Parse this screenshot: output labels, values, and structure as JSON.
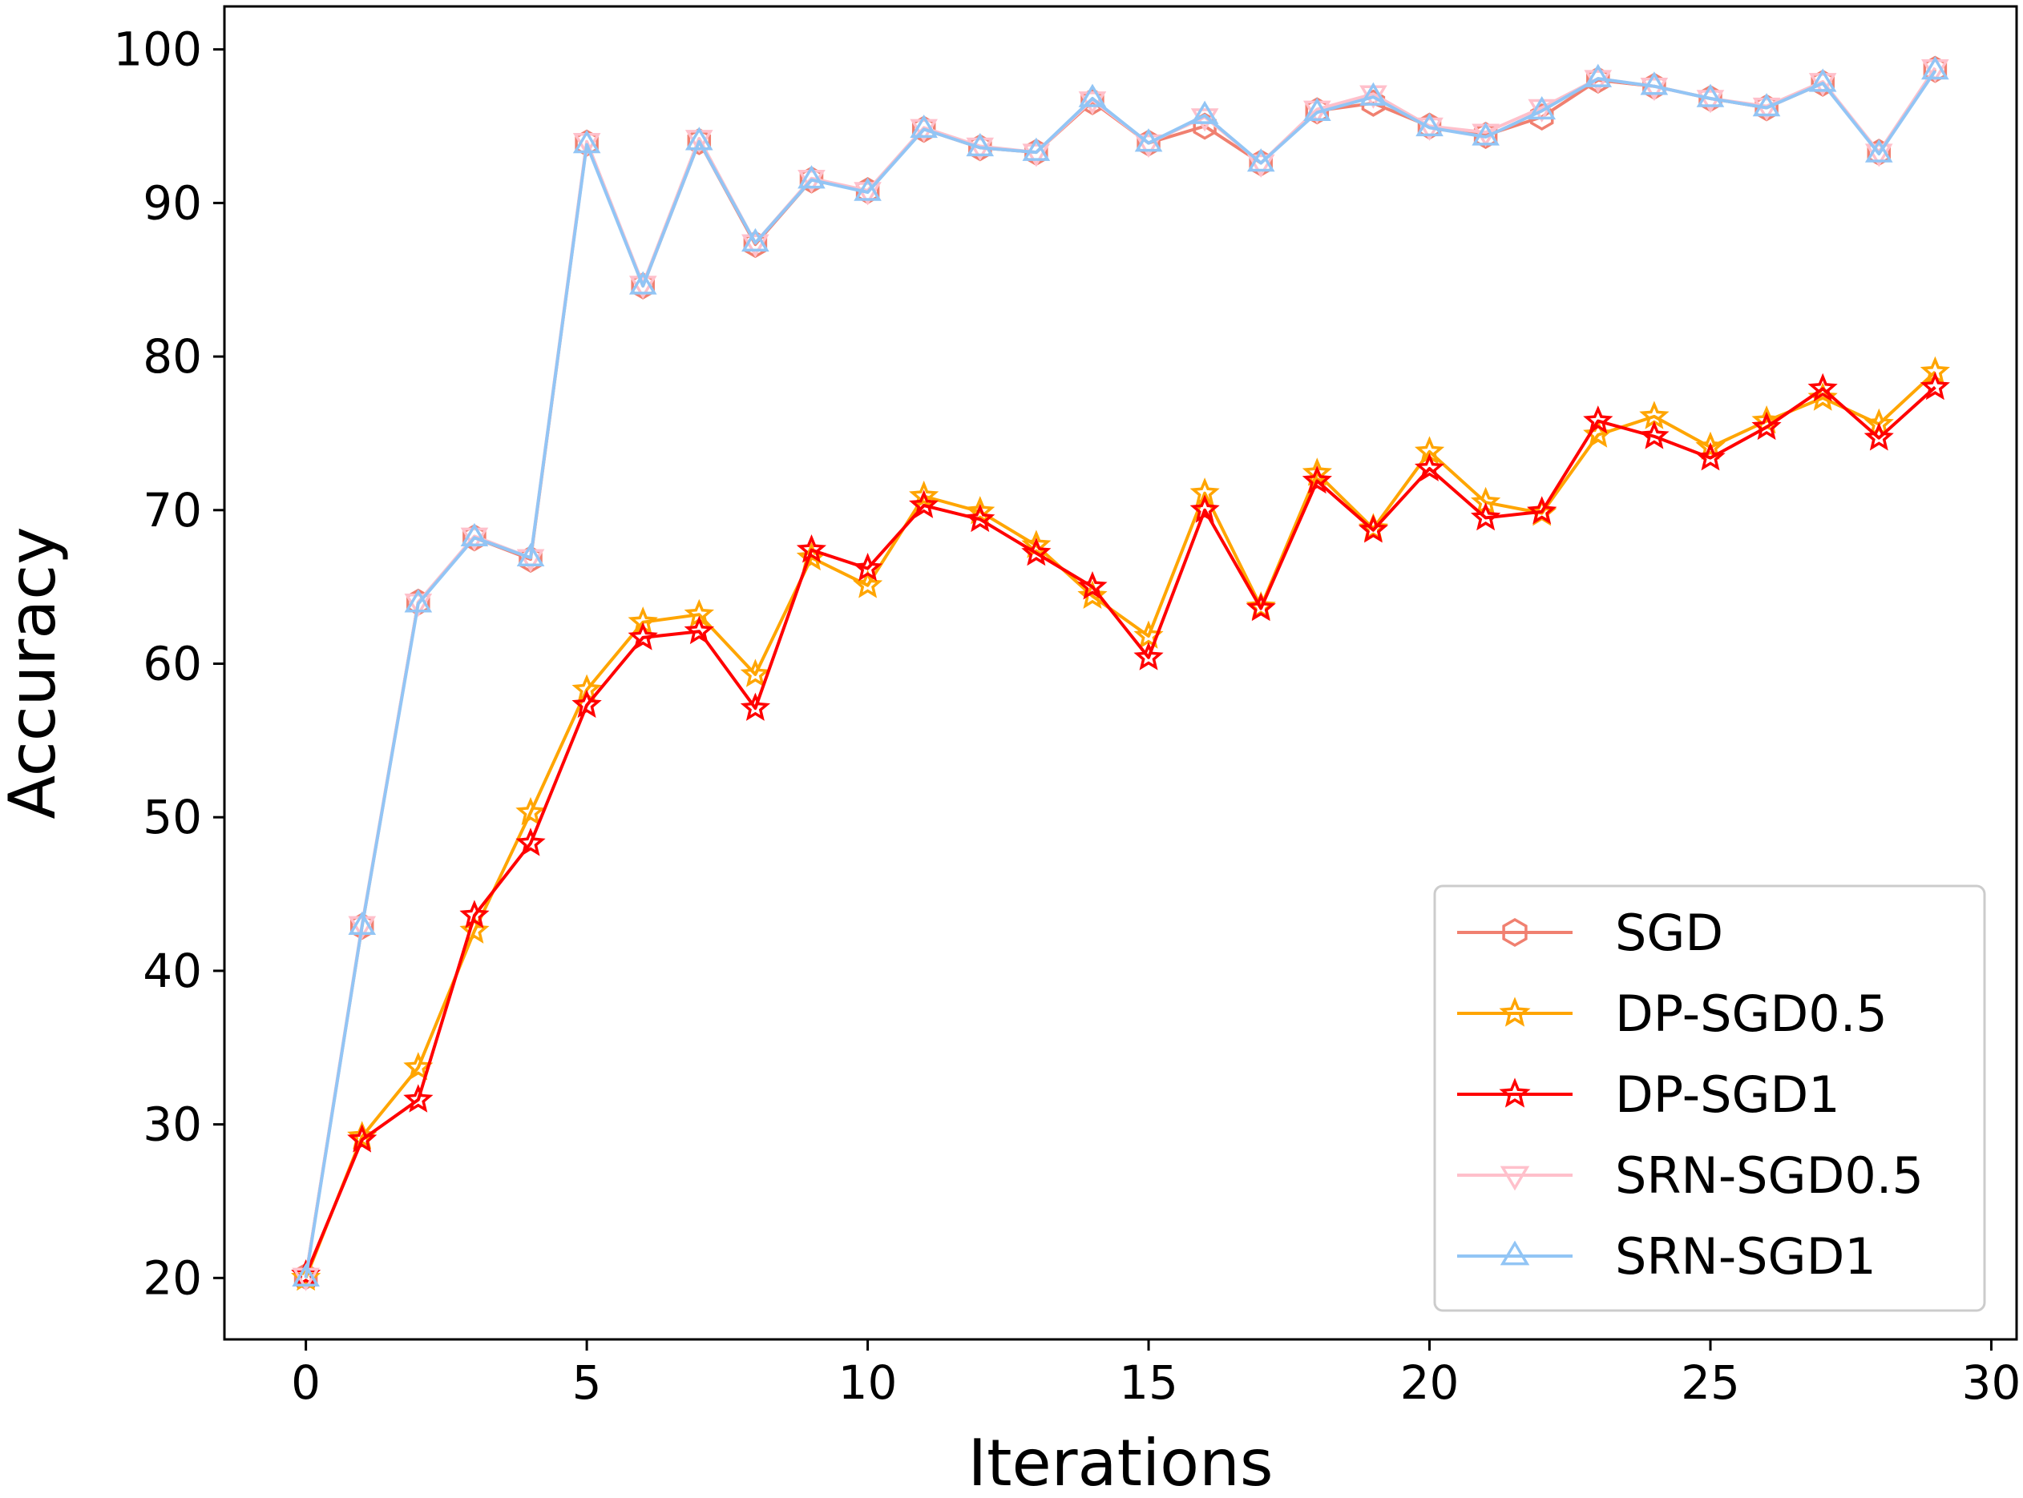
{
  "chart_data": {
    "type": "line",
    "title": "",
    "xlabel": "Iterations",
    "ylabel": "Accuracy",
    "xlim": [
      -1.45,
      30.45
    ],
    "ylim": [
      16.0,
      102.8
    ],
    "xticks": [
      0,
      5,
      10,
      15,
      20,
      25,
      30
    ],
    "yticks": [
      20,
      30,
      40,
      50,
      60,
      70,
      80,
      90,
      100
    ],
    "grid": false,
    "legend_position": "lower-right",
    "x": [
      0,
      1,
      2,
      3,
      4,
      5,
      6,
      7,
      8,
      9,
      10,
      11,
      12,
      13,
      14,
      15,
      16,
      17,
      18,
      19,
      20,
      21,
      22,
      23,
      24,
      25,
      26,
      27,
      28,
      29
    ],
    "series": [
      {
        "name": "SGD",
        "color": "#f08070",
        "marker": "hexagon",
        "values": [
          20.1,
          42.9,
          64.0,
          68.2,
          66.8,
          93.9,
          84.6,
          94.0,
          87.3,
          91.5,
          90.8,
          94.8,
          93.6,
          93.3,
          96.6,
          93.9,
          95.0,
          92.6,
          96.0,
          96.5,
          95.0,
          94.4,
          95.6,
          98.0,
          97.6,
          96.8,
          96.2,
          97.8,
          93.3,
          98.7
        ]
      },
      {
        "name": "DP-SGD0.5",
        "color": "#ffa500",
        "marker": "star",
        "values": [
          20.0,
          29.2,
          33.7,
          42.6,
          50.3,
          58.3,
          62.7,
          63.2,
          59.3,
          66.9,
          65.1,
          70.9,
          69.9,
          67.7,
          64.4,
          61.8,
          71.1,
          63.7,
          72.4,
          68.8,
          73.8,
          70.5,
          69.8,
          74.9,
          76.1,
          74.1,
          75.8,
          77.3,
          75.6,
          79.0
        ]
      },
      {
        "name": "DP-SGD1",
        "color": "#ff0000",
        "marker": "star",
        "values": [
          20.2,
          29.0,
          31.6,
          43.6,
          48.3,
          57.3,
          61.7,
          62.1,
          57.1,
          67.4,
          66.2,
          70.3,
          69.4,
          67.2,
          65.0,
          60.4,
          70.0,
          63.6,
          71.9,
          68.7,
          72.7,
          69.5,
          69.9,
          75.8,
          74.8,
          73.4,
          75.4,
          77.9,
          74.7,
          78.0
        ]
      },
      {
        "name": "SRN-SGD0.5",
        "color": "#ffc0cb",
        "marker": "triangle-down",
        "values": [
          20.1,
          43.0,
          64.0,
          68.3,
          66.9,
          94.0,
          84.7,
          94.2,
          87.4,
          91.6,
          90.8,
          94.9,
          93.7,
          93.3,
          96.7,
          93.9,
          95.6,
          92.6,
          96.1,
          97.1,
          95.0,
          94.6,
          96.2,
          98.1,
          97.6,
          96.8,
          96.3,
          97.9,
          93.3,
          98.8
        ]
      },
      {
        "name": "SRN-SGD1",
        "color": "#92c5f5",
        "marker": "triangle-up",
        "values": [
          20.0,
          42.9,
          63.9,
          68.2,
          66.9,
          93.8,
          84.6,
          94.0,
          87.4,
          91.5,
          90.7,
          94.8,
          93.6,
          93.3,
          96.8,
          93.9,
          95.7,
          92.6,
          95.9,
          96.9,
          94.9,
          94.3,
          96.0,
          98.1,
          97.6,
          96.8,
          96.2,
          97.8,
          93.2,
          98.6
        ]
      }
    ]
  }
}
